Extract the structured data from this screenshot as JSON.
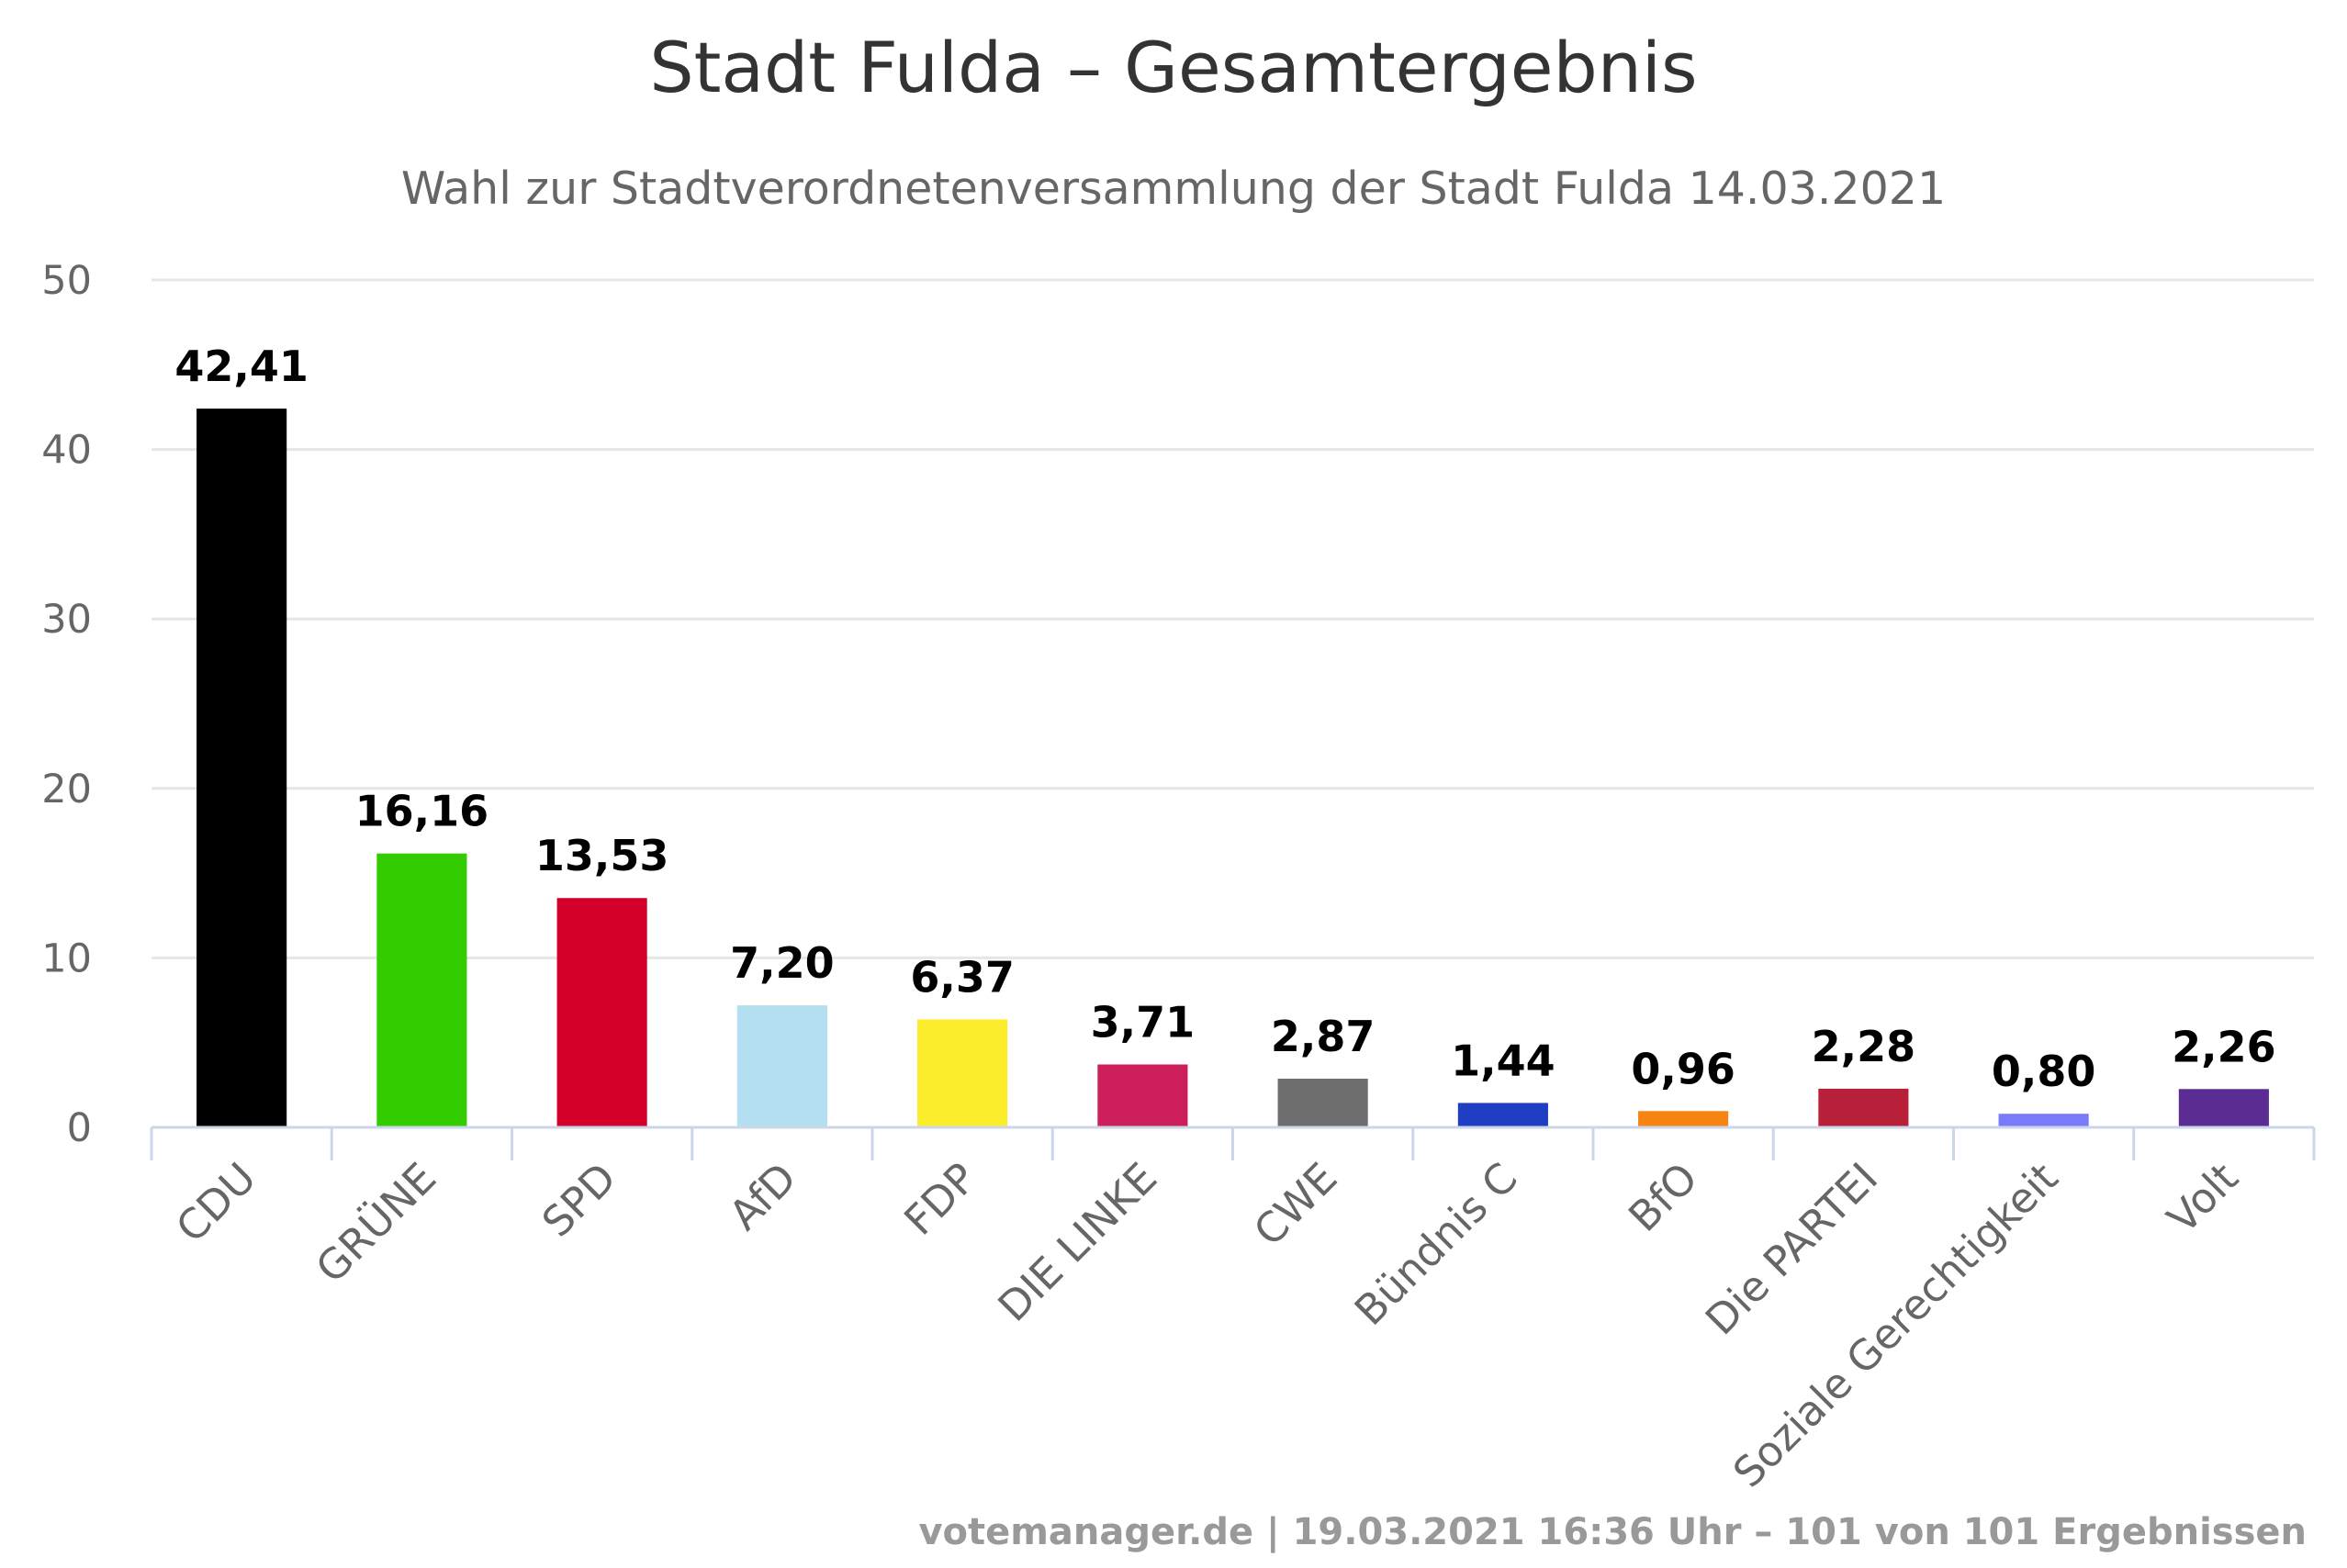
{
  "chart_data": {
    "type": "bar",
    "title": "Stadt Fulda – Gesamtergebnis",
    "subtitle": "Wahl zur Stadtverordnetenversammlung der Stadt Fulda 14.03.2021",
    "xlabel": "",
    "ylabel": "",
    "ylim": [
      0,
      50
    ],
    "yticks": [
      "0",
      "10",
      "20",
      "30",
      "40",
      "50"
    ],
    "grid": true,
    "legend": "none",
    "categories": [
      "CDU",
      "GRÜNE",
      "SPD",
      "AfD",
      "FDP",
      "DIE LINKE",
      "CWE",
      "Bündnis C",
      "BfO",
      "Die PARTEI",
      "Soziale Gerechtigkeit",
      "Volt"
    ],
    "values": [
      42.41,
      16.16,
      13.53,
      7.2,
      6.37,
      3.71,
      2.87,
      1.44,
      0.96,
      2.28,
      0.8,
      2.26
    ],
    "value_labels": [
      "42,41",
      "16,16",
      "13,53",
      "7,20",
      "6,37",
      "3,71",
      "2,87",
      "1,44",
      "0,96",
      "2,28",
      "0,80",
      "2,26"
    ],
    "colors": [
      "#000000",
      "#33cc00",
      "#d5002a",
      "#b3dff0",
      "#fbec2c",
      "#cc1e5a",
      "#6e6e6e",
      "#1f3ec4",
      "#f58412",
      "#b8203a",
      "#7a7afa",
      "#5b2d92"
    ],
    "credits": "votemanager.de | 19.03.2021 16:36 Uhr – 101 von 101 Ergebnissen"
  }
}
